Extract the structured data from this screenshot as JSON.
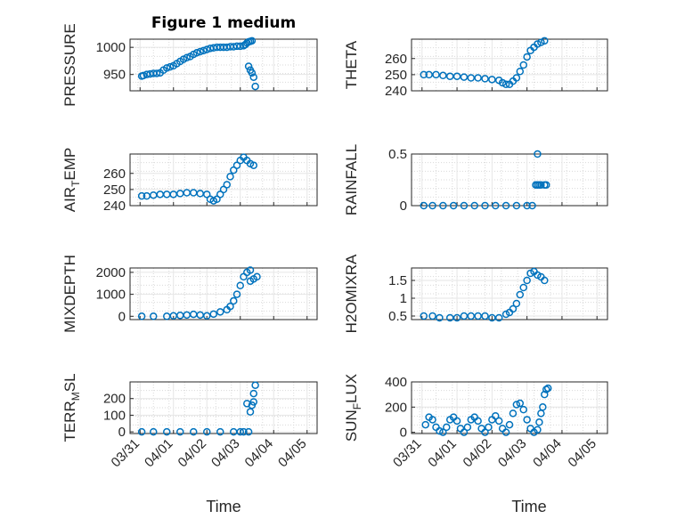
{
  "figure": {
    "title": "Figure 1 medium",
    "xlabel": "Time"
  },
  "colors": {
    "marker": "#0072BD",
    "grid": "#d9d9d9",
    "axis": "#262626"
  },
  "chart_data": [
    {
      "type": "scatter",
      "ylabel": "PRESSURE",
      "ylabel_sub": "",
      "xlim": [
        0,
        5
      ],
      "ylim": [
        920,
        1015
      ],
      "yticks": [
        950,
        1000
      ],
      "series": [
        {
          "points": [
            [
              0.05,
              947
            ],
            [
              0.1,
              948
            ],
            [
              0.2,
              950
            ],
            [
              0.3,
              951
            ],
            [
              0.4,
              952
            ],
            [
              0.5,
              952
            ],
            [
              0.6,
              953
            ],
            [
              0.7,
              958
            ],
            [
              0.8,
              962
            ],
            [
              0.9,
              964
            ],
            [
              1.0,
              966
            ],
            [
              1.1,
              970
            ],
            [
              1.2,
              974
            ],
            [
              1.3,
              978
            ],
            [
              1.4,
              981
            ],
            [
              1.5,
              983
            ],
            [
              1.6,
              987
            ],
            [
              1.7,
              990
            ],
            [
              1.8,
              992
            ],
            [
              1.9,
              994
            ],
            [
              2.0,
              996
            ],
            [
              2.1,
              998
            ],
            [
              2.2,
              999
            ],
            [
              2.3,
              1000
            ],
            [
              2.4,
              1000
            ],
            [
              2.5,
              1000
            ],
            [
              2.6,
              1000
            ],
            [
              2.7,
              1001
            ],
            [
              2.8,
              1001
            ],
            [
              2.9,
              1002
            ],
            [
              3.0,
              1002
            ],
            [
              3.1,
              1003
            ],
            [
              3.15,
              1005
            ],
            [
              3.2,
              1008
            ],
            [
              3.25,
              1010
            ],
            [
              3.3,
              1011
            ],
            [
              3.35,
              1012
            ],
            [
              3.25,
              965
            ],
            [
              3.3,
              958
            ],
            [
              3.35,
              953
            ],
            [
              3.4,
              945
            ],
            [
              3.45,
              928
            ]
          ]
        }
      ]
    },
    {
      "type": "scatter",
      "ylabel": "THETA",
      "ylabel_sub": "",
      "xlim": [
        0,
        5
      ],
      "ylim": [
        240,
        272
      ],
      "yticks": [
        240,
        250,
        260
      ],
      "series": [
        {
          "points": [
            [
              0.05,
              250
            ],
            [
              0.2,
              250
            ],
            [
              0.4,
              250
            ],
            [
              0.6,
              249.5
            ],
            [
              0.8,
              249
            ],
            [
              1.0,
              249
            ],
            [
              1.2,
              248.5
            ],
            [
              1.4,
              248
            ],
            [
              1.6,
              248
            ],
            [
              1.8,
              247.5
            ],
            [
              2.0,
              247
            ],
            [
              2.2,
              246.5
            ],
            [
              2.3,
              245
            ],
            [
              2.4,
              244
            ],
            [
              2.5,
              244
            ],
            [
              2.6,
              246
            ],
            [
              2.7,
              248
            ],
            [
              2.8,
              252
            ],
            [
              2.9,
              256
            ],
            [
              3.0,
              261
            ],
            [
              3.1,
              265
            ],
            [
              3.2,
              267
            ],
            [
              3.3,
              269
            ],
            [
              3.4,
              270
            ],
            [
              3.5,
              271
            ]
          ]
        }
      ]
    },
    {
      "type": "scatter",
      "ylabel": "AIR",
      "ylabel_sub": "T",
      "ylabel_rest": "EMP",
      "xlim": [
        0,
        5
      ],
      "ylim": [
        240,
        272
      ],
      "yticks": [
        240,
        250,
        260
      ],
      "series": [
        {
          "points": [
            [
              0.05,
              246
            ],
            [
              0.2,
              246
            ],
            [
              0.4,
              246.5
            ],
            [
              0.6,
              247
            ],
            [
              0.8,
              247
            ],
            [
              1.0,
              247
            ],
            [
              1.2,
              247.5
            ],
            [
              1.4,
              248
            ],
            [
              1.6,
              248
            ],
            [
              1.8,
              247.5
            ],
            [
              2.0,
              247
            ],
            [
              2.1,
              244
            ],
            [
              2.2,
              243
            ],
            [
              2.3,
              244
            ],
            [
              2.4,
              247
            ],
            [
              2.5,
              250
            ],
            [
              2.6,
              253
            ],
            [
              2.7,
              258
            ],
            [
              2.8,
              262
            ],
            [
              2.9,
              265
            ],
            [
              3.0,
              268
            ],
            [
              3.1,
              270
            ],
            [
              3.2,
              268
            ],
            [
              3.3,
              266
            ],
            [
              3.4,
              265
            ]
          ]
        }
      ]
    },
    {
      "type": "scatter",
      "ylabel": "RAINFALL",
      "ylabel_sub": "",
      "xlim": [
        0,
        5
      ],
      "ylim": [
        0,
        0.5
      ],
      "yticks": [
        0,
        0.5
      ],
      "series": [
        {
          "points": [
            [
              0.05,
              0
            ],
            [
              0.3,
              0
            ],
            [
              0.6,
              0
            ],
            [
              0.9,
              0
            ],
            [
              1.2,
              0
            ],
            [
              1.5,
              0
            ],
            [
              1.8,
              0
            ],
            [
              2.1,
              0
            ],
            [
              2.4,
              0
            ],
            [
              2.7,
              0
            ],
            [
              3.0,
              0
            ],
            [
              3.15,
              0
            ],
            [
              3.25,
              0.2
            ],
            [
              3.3,
              0.2
            ],
            [
              3.35,
              0.2
            ],
            [
              3.4,
              0.2
            ],
            [
              3.5,
              0.2
            ],
            [
              3.55,
              0.2
            ],
            [
              3.3,
              0.5
            ]
          ]
        }
      ]
    },
    {
      "type": "scatter",
      "ylabel": "MIXDEPTH",
      "ylabel_sub": "",
      "xlim": [
        0,
        5
      ],
      "ylim": [
        -150,
        2200
      ],
      "yticks": [
        0,
        1000,
        2000
      ],
      "series": [
        {
          "points": [
            [
              0.05,
              0
            ],
            [
              0.4,
              0
            ],
            [
              0.8,
              0
            ],
            [
              1.0,
              20
            ],
            [
              1.2,
              40
            ],
            [
              1.4,
              60
            ],
            [
              1.6,
              90
            ],
            [
              1.8,
              60
            ],
            [
              2.0,
              20
            ],
            [
              2.2,
              100
            ],
            [
              2.4,
              200
            ],
            [
              2.6,
              300
            ],
            [
              2.7,
              450
            ],
            [
              2.8,
              700
            ],
            [
              2.9,
              1000
            ],
            [
              3.0,
              1400
            ],
            [
              3.1,
              1800
            ],
            [
              3.2,
              2000
            ],
            [
              3.3,
              2100
            ],
            [
              3.3,
              1600
            ],
            [
              3.4,
              1700
            ],
            [
              3.5,
              1800
            ]
          ]
        }
      ]
    },
    {
      "type": "scatter",
      "ylabel": "H2OMIXRA",
      "ylabel_sub": "",
      "xlim": [
        0,
        5
      ],
      "ylim": [
        0.4,
        1.85
      ],
      "yticks": [
        0.5,
        1,
        1.5
      ],
      "series": [
        {
          "points": [
            [
              0.05,
              0.5
            ],
            [
              0.3,
              0.5
            ],
            [
              0.5,
              0.45
            ],
            [
              0.8,
              0.45
            ],
            [
              1.0,
              0.45
            ],
            [
              1.2,
              0.5
            ],
            [
              1.4,
              0.5
            ],
            [
              1.6,
              0.5
            ],
            [
              1.8,
              0.5
            ],
            [
              2.0,
              0.45
            ],
            [
              2.2,
              0.45
            ],
            [
              2.4,
              0.55
            ],
            [
              2.5,
              0.6
            ],
            [
              2.6,
              0.7
            ],
            [
              2.7,
              0.85
            ],
            [
              2.8,
              1.1
            ],
            [
              2.9,
              1.3
            ],
            [
              3.0,
              1.5
            ],
            [
              3.1,
              1.7
            ],
            [
              3.2,
              1.75
            ],
            [
              3.3,
              1.65
            ],
            [
              3.4,
              1.6
            ],
            [
              3.5,
              1.5
            ]
          ]
        }
      ]
    },
    {
      "type": "scatter",
      "ylabel": "TERR",
      "ylabel_sub": "M",
      "ylabel_rest": "SL",
      "xlim": [
        0,
        5
      ],
      "ylim": [
        -10,
        300
      ],
      "yticks": [
        0,
        100,
        200
      ],
      "series": [
        {
          "points": [
            [
              0.05,
              0
            ],
            [
              0.4,
              0
            ],
            [
              0.8,
              0
            ],
            [
              1.2,
              0
            ],
            [
              1.6,
              0
            ],
            [
              2.0,
              0
            ],
            [
              2.4,
              0
            ],
            [
              2.8,
              0
            ],
            [
              3.0,
              0
            ],
            [
              3.1,
              0
            ],
            [
              3.25,
              0
            ],
            [
              3.3,
              120
            ],
            [
              3.35,
              160
            ],
            [
              3.4,
              180
            ],
            [
              3.4,
              230
            ],
            [
              3.45,
              280
            ],
            [
              3.2,
              170
            ]
          ]
        }
      ]
    },
    {
      "type": "scatter",
      "ylabel": "SUN",
      "ylabel_sub": "F",
      "ylabel_rest": "LUX",
      "xlim": [
        0,
        5
      ],
      "ylim": [
        -10,
        400
      ],
      "yticks": [
        0,
        200,
        400
      ],
      "series": [
        {
          "points": [
            [
              0.1,
              60
            ],
            [
              0.2,
              120
            ],
            [
              0.3,
              100
            ],
            [
              0.4,
              40
            ],
            [
              0.5,
              10
            ],
            [
              0.6,
              0
            ],
            [
              0.7,
              40
            ],
            [
              0.8,
              100
            ],
            [
              0.9,
              120
            ],
            [
              1.0,
              90
            ],
            [
              1.1,
              30
            ],
            [
              1.2,
              0
            ],
            [
              1.3,
              40
            ],
            [
              1.4,
              100
            ],
            [
              1.5,
              120
            ],
            [
              1.6,
              90
            ],
            [
              1.7,
              30
            ],
            [
              1.8,
              0
            ],
            [
              1.9,
              40
            ],
            [
              2.0,
              100
            ],
            [
              2.1,
              130
            ],
            [
              2.2,
              90
            ],
            [
              2.3,
              30
            ],
            [
              2.4,
              0
            ],
            [
              2.5,
              60
            ],
            [
              2.6,
              150
            ],
            [
              2.7,
              220
            ],
            [
              2.8,
              230
            ],
            [
              2.9,
              180
            ],
            [
              3.0,
              100
            ],
            [
              3.1,
              30
            ],
            [
              3.2,
              0
            ],
            [
              3.3,
              20
            ],
            [
              3.35,
              80
            ],
            [
              3.4,
              150
            ],
            [
              3.45,
              200
            ],
            [
              3.5,
              300
            ],
            [
              3.55,
              340
            ],
            [
              3.6,
              350
            ]
          ]
        }
      ]
    }
  ],
  "xtick_labels": [
    "03/31",
    "04/01",
    "04/02",
    "04/03",
    "04/04",
    "04/05"
  ],
  "xtick_values": [
    0,
    1,
    2,
    3,
    4,
    5
  ]
}
